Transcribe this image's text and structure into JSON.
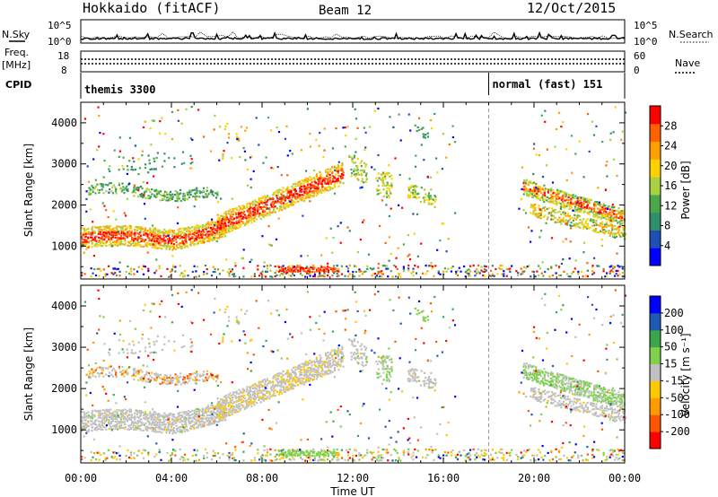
{
  "header": {
    "title": "Hokkaido (fitACF)",
    "beam": "Beam 12",
    "date": "12/Oct/2015"
  },
  "top_panel": {
    "nsky_label": "N.Sky",
    "nsearch_label": "N.Search",
    "freq_label_1": "Freq.",
    "freq_label_2": "[MHz]",
    "nave_label": "Nave",
    "cpid_label": "CPID",
    "noise_left_ticks": [
      "10^5",
      "10^0"
    ],
    "noise_right_ticks": [
      "10^5",
      "10^0"
    ],
    "freq_left_ticks": [
      "18",
      "8"
    ],
    "freq_right_ticks": [
      "60",
      "0"
    ],
    "cpid_segments": [
      {
        "name": "themis 3300",
        "start_hour": 0,
        "end_hour": 18
      },
      {
        "name": "normal (fast) 151",
        "start_hour": 18,
        "end_hour": 24
      }
    ]
  },
  "colors": {
    "power": [
      "#0000ff",
      "#1e50b4",
      "#2f8f6a",
      "#4aa84a",
      "#a8d040",
      "#ffd000",
      "#ffa000",
      "#ff6000",
      "#ff0000"
    ],
    "velocity": [
      "#ff0000",
      "#ff5500",
      "#ff9a00",
      "#ffc800",
      "#c0c0c0",
      "#7fd04a",
      "#3aa54a",
      "#1e5ab4",
      "#0000ff"
    ]
  },
  "chart_data": [
    {
      "type": "heatmap",
      "name": "Power",
      "ylabel": "Slant Range [km]",
      "colorbar_label": "Power [dB]",
      "colorbar_ticks": [
        "4",
        "8",
        "12",
        "16",
        "20",
        "24",
        "28"
      ],
      "ylim": [
        200,
        4500
      ],
      "ytick_labels": [
        "1000",
        "2000",
        "3000",
        "4000"
      ],
      "ytick_values": [
        1000,
        2000,
        3000,
        4000
      ]
    },
    {
      "type": "heatmap",
      "name": "Velocity",
      "ylabel": "Slant Range [km]",
      "colorbar_label": "Velocity [m s⁻¹]",
      "colorbar_ticks": [
        "-200",
        "-100",
        "-50",
        "-15",
        "15",
        "50",
        "100",
        "200"
      ],
      "ylim": [
        200,
        4500
      ],
      "ytick_labels": [
        "1000",
        "2000",
        "3000",
        "4000"
      ],
      "ytick_values": [
        1000,
        2000,
        3000,
        4000
      ]
    }
  ],
  "x_axis": {
    "label": "Time UT",
    "tick_labels": [
      "00:00",
      "04:00",
      "08:00",
      "12:00",
      "16:00",
      "20:00",
      "00:00"
    ],
    "tick_hours": [
      0,
      4,
      8,
      12,
      16,
      20,
      24
    ],
    "mode_change_hour": 18
  }
}
